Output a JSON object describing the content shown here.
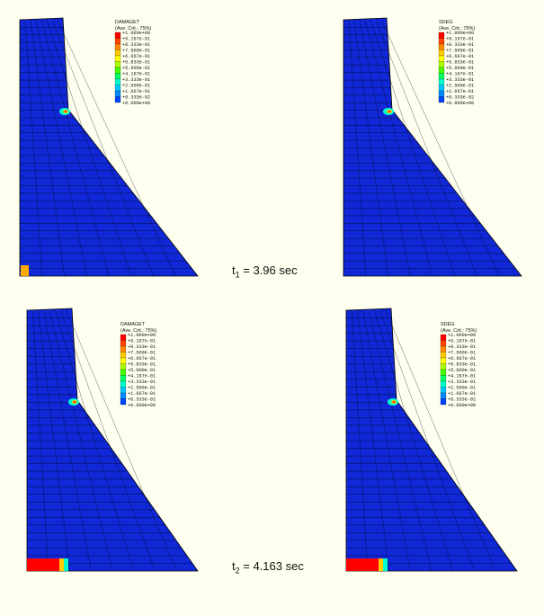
{
  "colors": {
    "background": "#ffffef",
    "mesh_fill": "#1028d8",
    "mesh_line": "#000000",
    "contour_scale": [
      "#0000ff",
      "#0044ff",
      "#0088ff",
      "#00c8ff",
      "#00ffcc",
      "#00ff66",
      "#44ff00",
      "#aaff00",
      "#ffff00",
      "#ffcc00",
      "#ff8800",
      "#ff4400",
      "#ff0000"
    ]
  },
  "panels": [
    {
      "id": "damage-t1",
      "legend": {
        "title": "DAMAGET",
        "subtitle": "(Ave. Crit.: 75%)",
        "values": [
          "+1.000e+00",
          "+9.167e-01",
          "+8.333e-01",
          "+7.500e-01",
          "+6.667e-01",
          "+5.833e-01",
          "+5.000e-01",
          "+4.167e-01",
          "+3.333e-01",
          "+2.500e-01",
          "+1.667e-01",
          "+8.333e-02",
          "+0.000e+00"
        ]
      }
    },
    {
      "id": "sdeg-t1",
      "legend": {
        "title": "SDEG",
        "subtitle": "(Ave. Crit.: 75%)",
        "values": [
          "+1.000e+00",
          "+9.167e-01",
          "+8.333e-01",
          "+7.500e-01",
          "+6.667e-01",
          "+5.833e-01",
          "+5.000e-01",
          "+4.167e-01",
          "+3.333e-01",
          "+2.500e-01",
          "+1.667e-01",
          "+8.333e-02",
          "+0.000e+00"
        ]
      }
    },
    {
      "id": "damage-t2",
      "legend": {
        "title": "DAMAGET",
        "subtitle": "(Ave. Crit.: 75%)",
        "values": [
          "+1.000e+00",
          "+9.167e-01",
          "+8.333e-01",
          "+7.500e-01",
          "+6.667e-01",
          "+5.833e-01",
          "+5.000e-01",
          "+4.167e-01",
          "+3.333e-01",
          "+2.500e-01",
          "+1.667e-01",
          "+8.333e-02",
          "+0.000e+00"
        ]
      }
    },
    {
      "id": "sdeg-t2",
      "legend": {
        "title": "SDEG",
        "subtitle": "(Ave. Crit.: 75%)",
        "values": [
          "+1.000e+00",
          "+9.167e-01",
          "+8.333e-01",
          "+7.500e-01",
          "+6.667e-01",
          "+5.833e-01",
          "+5.000e-01",
          "+4.167e-01",
          "+3.333e-01",
          "+2.500e-01",
          "+1.667e-01",
          "+8.333e-02",
          "+0.000e+00"
        ]
      }
    }
  ],
  "time_labels": [
    {
      "symbol": "t",
      "subscript": "1",
      "value": " = 3.96 sec"
    },
    {
      "symbol": "t",
      "subscript": "2",
      "value": " = 4.163 sec"
    }
  ]
}
